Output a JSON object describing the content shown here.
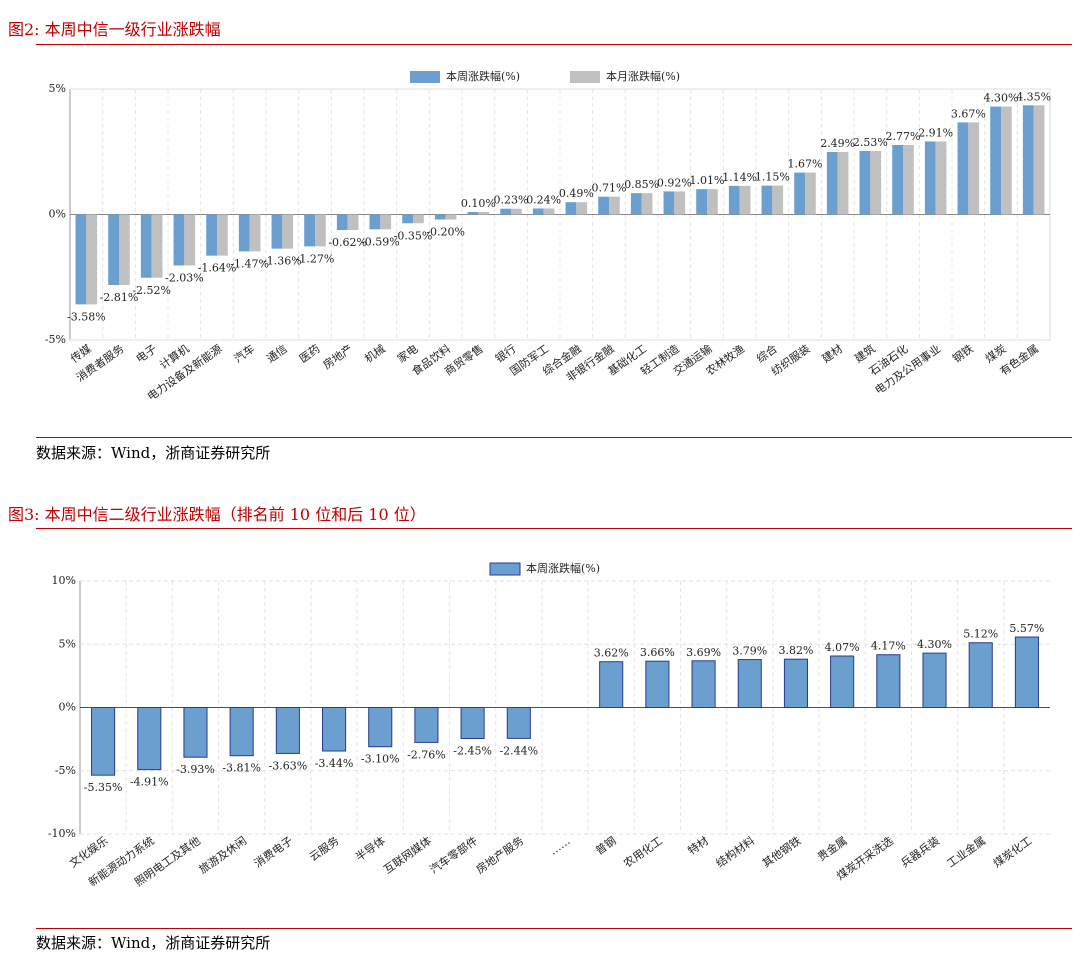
{
  "chart_data": [
    {
      "type": "bar",
      "title": "图2:   本周中信一级行业涨跌幅",
      "source": "数据来源：Wind，浙商证券研究所",
      "categories": [
        "传媒",
        "消费者服务",
        "电子",
        "计算机",
        "电力设备及新能源",
        "汽车",
        "通信",
        "医药",
        "房地产",
        "机械",
        "家电",
        "食品饮料",
        "商贸零售",
        "银行",
        "国防军工",
        "综合金融",
        "非银行金融",
        "基础化工",
        "轻工制造",
        "交通运输",
        "农林牧渔",
        "综合",
        "纺织服装",
        "建材",
        "建筑",
        "石油石化",
        "电力及公用事业",
        "钢铁",
        "煤炭",
        "有色金属"
      ],
      "series": [
        {
          "name": "本周涨跌幅(%)",
          "color": "#6a9fd0",
          "values": [
            -3.58,
            -2.81,
            -2.52,
            -2.03,
            -1.64,
            -1.47,
            -1.36,
            -1.27,
            -0.62,
            -0.59,
            -0.35,
            -0.2,
            0.1,
            0.23,
            0.24,
            0.49,
            0.71,
            0.85,
            0.92,
            1.01,
            1.14,
            1.15,
            1.67,
            2.49,
            2.53,
            2.77,
            2.91,
            3.67,
            4.3,
            4.35
          ],
          "value_labels": [
            "-3.58%",
            "-2.81%",
            "-2.52%",
            "-2.03%",
            "-1.64%",
            "-1.47%",
            "-1.36%",
            "-1.27%",
            "-0.62%",
            "-0.59%",
            "-0.35%",
            "-0.20%",
            "0.10%",
            "0.23%",
            "0.24%",
            "0.49%",
            "0.71%",
            "0.85%",
            "0.92%",
            "1.01%",
            "1.14%",
            "1.15%",
            "1.67%",
            "2.49%",
            "2.53%",
            "2.77%",
            "2.91%",
            "3.67%",
            "4.30%",
            "4.35%"
          ]
        },
        {
          "name": "本月涨跌幅(%)",
          "color": "#c0c0c0",
          "values": [
            -3.58,
            -2.81,
            -2.52,
            -2.03,
            -1.64,
            -1.47,
            -1.36,
            -1.27,
            -0.62,
            -0.59,
            -0.35,
            -0.2,
            0.1,
            0.23,
            0.24,
            0.49,
            0.71,
            0.85,
            0.92,
            1.01,
            1.14,
            1.15,
            1.67,
            2.49,
            2.53,
            2.77,
            2.91,
            3.67,
            4.3,
            4.35
          ]
        }
      ],
      "ylim": [
        -5,
        5
      ],
      "yticks": [
        {
          "value": -5,
          "label": "-5%"
        },
        {
          "value": 0,
          "label": "0%"
        },
        {
          "value": 5,
          "label": "5%"
        }
      ],
      "grid": true
    },
    {
      "type": "bar",
      "title": "图3:   本周中信二级行业涨跌幅（排名前 10 位和后 10 位）",
      "source": "数据来源：Wind，浙商证券研究所",
      "categories": [
        "文化娱乐",
        "新能源动力系统",
        "照明电工及其他",
        "旅游及休闲",
        "消费电子",
        "云服务",
        "半导体",
        "互联网媒体",
        "汽车零部件",
        "房地产服务",
        "……",
        "普钢",
        "农用化工",
        "特材",
        "结构材料",
        "其他钢铁",
        "贵金属",
        "煤炭开采洗选",
        "兵器兵装",
        "工业金属",
        "煤炭化工"
      ],
      "series": [
        {
          "name": "本周涨跌幅(%)",
          "color": "#6a9fd0",
          "values": [
            -5.35,
            -4.91,
            -3.93,
            -3.81,
            -3.63,
            -3.44,
            -3.1,
            -2.76,
            -2.45,
            -2.44,
            null,
            3.62,
            3.66,
            3.69,
            3.79,
            3.82,
            4.07,
            4.17,
            4.3,
            5.12,
            5.57
          ],
          "value_labels": [
            "-5.35%",
            "-4.91%",
            "-3.93%",
            "-3.81%",
            "-3.63%",
            "-3.44%",
            "-3.10%",
            "-2.76%",
            "-2.45%",
            "-2.44%",
            null,
            "3.62%",
            "3.66%",
            "3.69%",
            "3.79%",
            "3.82%",
            "4.07%",
            "4.17%",
            "4.30%",
            "5.12%",
            "5.57%"
          ]
        }
      ],
      "ylim": [
        -10,
        10
      ],
      "yticks": [
        {
          "value": -10,
          "label": "-10%"
        },
        {
          "value": -5,
          "label": "-5%"
        },
        {
          "value": 0,
          "label": "0%"
        },
        {
          "value": 5,
          "label": "5%"
        },
        {
          "value": 10,
          "label": "10%"
        }
      ],
      "grid": true
    }
  ]
}
